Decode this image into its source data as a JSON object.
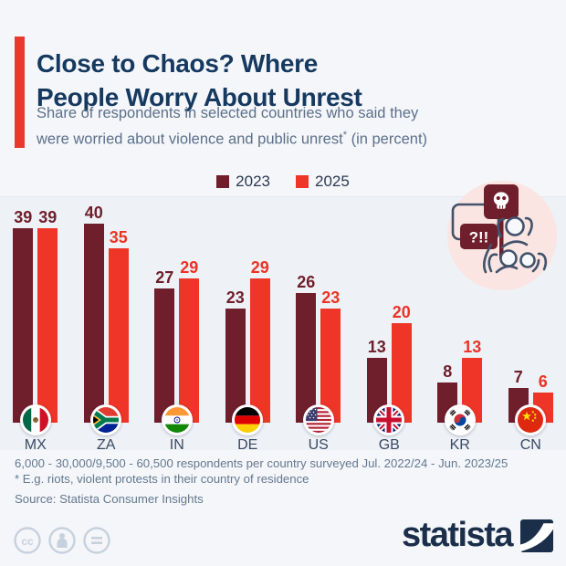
{
  "header": {
    "title_line1": "Close to Chaos? Where",
    "title_line2": "People Worry About Unrest",
    "subtitle_line1": "Share of respondents in selected countries who said they",
    "subtitle_line2_pre": "were worried about violence and public unrest",
    "subtitle_asterisk": "*",
    "subtitle_line2_post": " (in percent)"
  },
  "legend": [
    {
      "label": "2023",
      "color": "#6e1f2b"
    },
    {
      "label": "2025",
      "color": "#ee3527"
    }
  ],
  "chart_data": {
    "type": "bar",
    "categories": [
      "MX",
      "ZA",
      "IN",
      "DE",
      "US",
      "GB",
      "KR",
      "CN"
    ],
    "series": [
      {
        "name": "2023",
        "color": "#6e1f2b",
        "values": [
          39,
          40,
          27,
          23,
          26,
          13,
          8,
          7
        ],
        "label_colors": [
          "#6e1f2b",
          "#6e1f2b",
          "#6e1f2b",
          "#6e1f2b",
          "#6e1f2b",
          "#6e1f2b",
          "#6e1f2b",
          "#6e1f2b"
        ]
      },
      {
        "name": "2025",
        "color": "#ee3527",
        "values": [
          39,
          35,
          29,
          29,
          23,
          20,
          13,
          6
        ],
        "label_colors": [
          "#6e1f2b",
          "#e93425",
          "#e93425",
          "#e93425",
          "#e93425",
          "#e93425",
          "#e93425",
          "#e93425"
        ]
      }
    ],
    "ylim": [
      0,
      42
    ],
    "value_labels": true,
    "grid": false,
    "legend_position": "top-center",
    "flag_icons": [
      "mexico-flag",
      "south-africa-flag",
      "india-flag",
      "germany-flag",
      "united-states-flag",
      "united-kingdom-flag",
      "south-korea-flag",
      "china-flag"
    ]
  },
  "illustration": {
    "sign_text": "?!!",
    "skull_icon": "skull-sign-icon"
  },
  "footer": {
    "note1": "6,000 - 30,000/9,500 - 60,500 respondents per country surveyed Jul. 2022/24 - Jun. 2023/25",
    "note2": "* E.g. riots, violent protests in their country of residence",
    "source": "Source: Statista Consumer Insights"
  },
  "branding": {
    "logo_text": "statista"
  },
  "colors": {
    "background": "#f4f6fa",
    "chart_band": "#eef1f6",
    "title": "#16395f",
    "subtitle": "#5c7089",
    "accent_bar": "#e9392c",
    "bar_2023": "#6e1f2b",
    "bar_2025": "#ee3527",
    "illustration_circle": "#fbe5e2"
  }
}
